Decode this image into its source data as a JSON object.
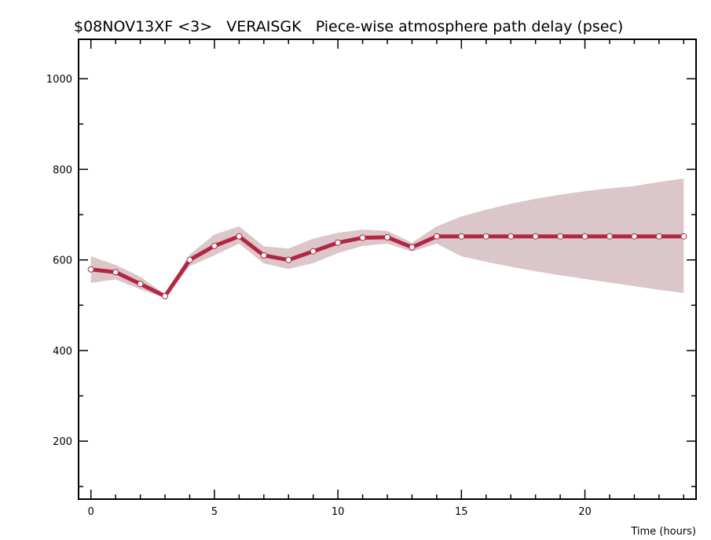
{
  "chart_data": {
    "type": "line",
    "title": "$08NOV13XF <3>   VERAISGK   Piece-wise atmosphere path delay (psec)",
    "xlabel": "Time (hours)",
    "ylabel": "",
    "xlim": [
      -0.5,
      24.5
    ],
    "ylim": [
      72,
      1087
    ],
    "xticks": [
      0,
      5,
      10,
      15,
      20
    ],
    "yticks": [
      200,
      400,
      600,
      800,
      1000
    ],
    "grid": false,
    "series": [
      {
        "name": "delay",
        "color": "#b22642",
        "x": [
          0,
          1,
          2,
          3,
          4,
          5,
          6,
          7,
          8,
          9,
          10,
          11,
          12,
          13,
          14,
          15,
          16,
          17,
          18,
          19,
          20,
          21,
          22,
          23,
          24
        ],
        "values": [
          579,
          573,
          547,
          520,
          600,
          631,
          652,
          610,
          600,
          619,
          638,
          649,
          650,
          628,
          652,
          652,
          652,
          652,
          652,
          652,
          652,
          652,
          652,
          652,
          652
        ],
        "upper": [
          608,
          589,
          563,
          524,
          612,
          656,
          674,
          630,
          625,
          647,
          660,
          667,
          664,
          638,
          674,
          696,
          711,
          724,
          735,
          744,
          752,
          758,
          763,
          772,
          780
        ],
        "lower": [
          549,
          557,
          535,
          516,
          586,
          610,
          636,
          592,
          580,
          593,
          615,
          631,
          636,
          618,
          636,
          608,
          596,
          585,
          575,
          566,
          558,
          550,
          542,
          534,
          527
        ]
      }
    ],
    "band_color": "#dbc6ca"
  }
}
